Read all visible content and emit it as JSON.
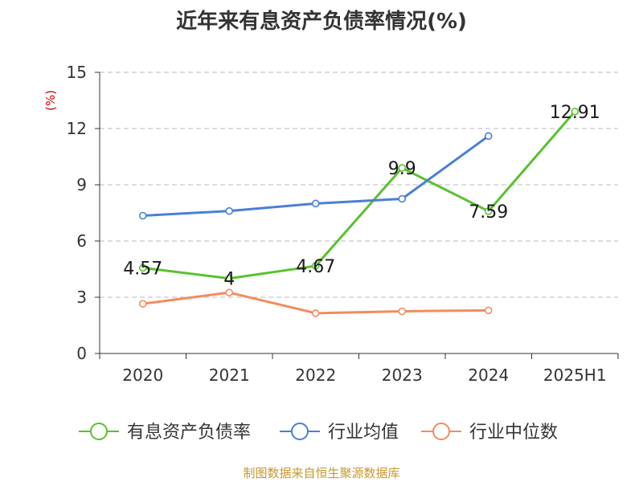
{
  "chart_data": {
    "type": "line",
    "title": "近年来有息资产负债率情况(%)",
    "ylabel": "(%)",
    "xlabel": "",
    "categories": [
      "2020",
      "2021",
      "2022",
      "2023",
      "2024",
      "2025H1"
    ],
    "ylim": [
      0,
      15
    ],
    "yticks": [
      0,
      3,
      6,
      9,
      12,
      15
    ],
    "grid": true,
    "legend_position": "bottom",
    "series": [
      {
        "name": "有息资产负债率",
        "color": "#5ac12f",
        "values": [
          4.57,
          4,
          4.67,
          9.9,
          7.59,
          12.91
        ],
        "labels": [
          "4.57",
          "4",
          "4.67",
          "9.9",
          "7.59",
          "12.91"
        ]
      },
      {
        "name": "行业均值",
        "color": "#4a7fd6",
        "values": [
          7.35,
          7.6,
          8.0,
          8.25,
          11.6,
          null
        ]
      },
      {
        "name": "行业中位数",
        "color": "#f28c5c",
        "values": [
          2.65,
          3.25,
          2.15,
          2.25,
          2.3,
          null
        ]
      }
    ]
  },
  "source_text": "制图数据来自恒生聚源数据库"
}
